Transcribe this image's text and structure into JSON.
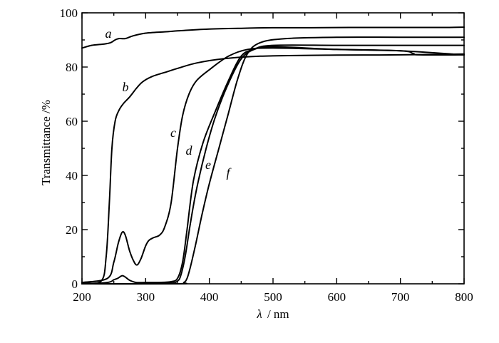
{
  "chart_data": {
    "type": "line",
    "xlabel_symbol": "λ",
    "xlabel_unit": "/ nm",
    "ylabel": "Transmittance /%",
    "xlim": [
      200,
      800
    ],
    "ylim": [
      0,
      100
    ],
    "xticks": [
      200,
      300,
      400,
      500,
      600,
      700,
      800
    ],
    "yticks": [
      0,
      20,
      40,
      60,
      80,
      100
    ],
    "grid": false,
    "series": [
      {
        "name": "a",
        "x": [
          200,
          215,
          235,
          245,
          252,
          258,
          268,
          280,
          300,
          330,
          360,
          400,
          450,
          500,
          560,
          620,
          700,
          760,
          800
        ],
        "y": [
          87,
          88,
          88.5,
          89,
          90,
          90.5,
          90.5,
          91.5,
          92.5,
          93,
          93.5,
          94,
          94.3,
          94.5,
          94.5,
          94.6,
          94.6,
          94.6,
          94.7
        ]
      },
      {
        "name": "b",
        "x": [
          200,
          230,
          238,
          243,
          247,
          252,
          258,
          265,
          275,
          285,
          295,
          310,
          330,
          350,
          380,
          420,
          480,
          600,
          700,
          800
        ],
        "y": [
          0.5,
          1,
          10,
          30,
          50,
          60,
          64,
          66.5,
          69,
          72,
          74.5,
          76.5,
          78,
          79.5,
          81.5,
          83,
          84,
          84.4,
          84.5,
          84.8
        ]
      },
      {
        "name": "c",
        "x": [
          200,
          240,
          250,
          257,
          263,
          268,
          275,
          282,
          287,
          293,
          300,
          305,
          312,
          322,
          330,
          340,
          350,
          358,
          368,
          380,
          400,
          430,
          460,
          500,
          600,
          700,
          800
        ],
        "y": [
          0.5,
          2,
          8,
          15,
          19,
          18,
          12,
          8,
          7,
          9.5,
          14,
          16,
          17,
          18,
          21,
          30,
          50,
          62,
          70,
          75,
          79,
          84,
          86.5,
          87,
          86.5,
          86,
          84.5
        ]
      },
      {
        "name": "d",
        "x": [
          200,
          240,
          250,
          256,
          263,
          268,
          275,
          285,
          300,
          320,
          340,
          350,
          358,
          365,
          375,
          390,
          410,
          430,
          450,
          470,
          500,
          600,
          700,
          720,
          730,
          800
        ],
        "y": [
          0,
          0.5,
          1.5,
          2,
          3,
          2.5,
          1.3,
          0.5,
          0.5,
          0.5,
          0.8,
          2,
          8,
          20,
          38,
          52,
          64,
          75,
          84,
          86.5,
          87.5,
          86.5,
          86,
          85,
          84.5,
          84.5
        ]
      },
      {
        "name": "e",
        "x": [
          200,
          300,
          340,
          350,
          355,
          362,
          370,
          380,
          395,
          410,
          430,
          450,
          470,
          500,
          600,
          700,
          800
        ],
        "y": [
          0,
          0,
          0.3,
          1,
          3,
          10,
          22,
          35,
          50,
          62,
          74,
          83,
          86.5,
          88,
          88,
          88,
          88
        ]
      },
      {
        "name": "f",
        "x": [
          200,
          350,
          360,
          365,
          370,
          378,
          388,
          400,
          415,
          430,
          445,
          460,
          480,
          520,
          600,
          700,
          800
        ],
        "y": [
          0,
          0,
          0.5,
          2,
          6,
          14,
          25,
          37,
          50,
          63,
          76,
          85,
          89,
          90.5,
          91,
          91,
          91
        ]
      }
    ]
  }
}
